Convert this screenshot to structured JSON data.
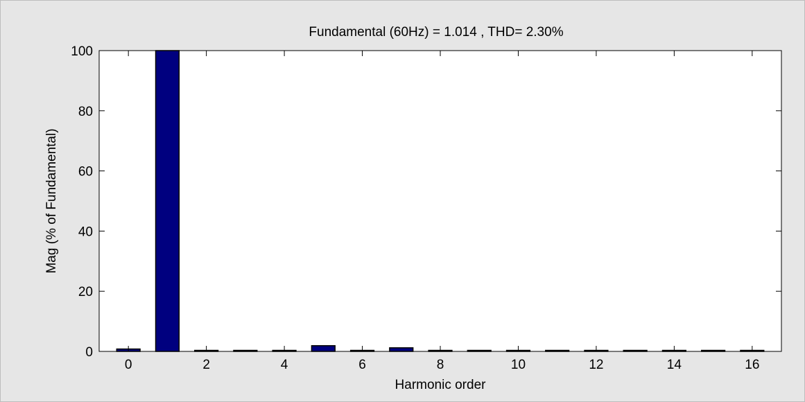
{
  "figure": {
    "background": "#e6e6e6",
    "border": "#bdbdbd"
  },
  "chart_data": {
    "type": "bar",
    "title": "Fundamental (60Hz) = 1.014 , THD= 2.30%",
    "xlabel": "Harmonic order",
    "ylabel": "Mag (% of Fundamental)",
    "x": [
      0,
      1,
      2,
      3,
      4,
      5,
      6,
      7,
      8,
      9,
      10,
      11,
      12,
      13,
      14,
      15,
      16
    ],
    "values": [
      0.8,
      100,
      0.3,
      0.2,
      0.3,
      1.9,
      0.3,
      1.2,
      0.2,
      0.2,
      0.2,
      0.2,
      0.2,
      0.2,
      0.2,
      0.2,
      0.2
    ],
    "xlim": [
      -0.75,
      16.75
    ],
    "ylim": [
      0,
      100
    ],
    "xticks": [
      0,
      2,
      4,
      6,
      8,
      10,
      12,
      14,
      16
    ],
    "yticks": [
      0,
      20,
      40,
      60,
      80,
      100
    ],
    "grid": false,
    "bar_color": "#00007f",
    "bar_edge_color": "#000000"
  }
}
